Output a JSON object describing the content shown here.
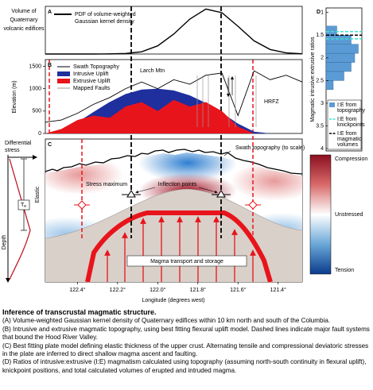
{
  "chart_data": [
    {
      "type": "line",
      "letter": "A",
      "ylabel_lines": [
        "Volume of",
        "Quaternary",
        "volcanic edifices"
      ],
      "legend_lines": [
        "PDF of volume-weighted",
        "Gaussian kernel density"
      ],
      "xlim": [
        122.56,
        121.28
      ],
      "ylim": [
        0,
        1.05
      ],
      "x": [
        122.56,
        122.48,
        122.4,
        122.32,
        122.24,
        122.16,
        122.08,
        122.0,
        121.92,
        121.84,
        121.76,
        121.68,
        121.6,
        121.52,
        121.44,
        121.36,
        121.28
      ],
      "values": [
        0,
        0,
        0,
        0.0002,
        0.002,
        0.011,
        0.05,
        0.18,
        0.44,
        0.77,
        0.99,
        0.91,
        0.61,
        0.29,
        0.1,
        0.025,
        0.005
      ],
      "color": "#000000"
    },
    {
      "type": "area",
      "letter": "B",
      "ylabel": "Elevation (m)",
      "xlim": [
        122.56,
        121.28
      ],
      "ylim": [
        0,
        1650
      ],
      "yticks": [
        0,
        500,
        1000,
        1500
      ],
      "x": [
        122.56,
        122.48,
        122.4,
        122.32,
        122.24,
        122.16,
        122.08,
        122.0,
        121.92,
        121.84,
        121.76,
        121.68,
        121.6,
        121.52,
        121.44,
        121.36,
        121.28
      ],
      "series": [
        {
          "name": "Swath Topography",
          "color": "#000000",
          "values": [
            250,
            300,
            450,
            650,
            800,
            1000,
            1150,
            1000,
            1200,
            1100,
            1300,
            1350,
            400,
            1400,
            1200,
            1300,
            1150
          ]
        },
        {
          "name": "Intrusive Uplift",
          "color": "#1f2f9e",
          "values": [
            0,
            80,
            250,
            480,
            700,
            880,
            980,
            1000,
            960,
            850,
            680,
            460,
            220,
            40,
            0,
            0,
            0
          ]
        },
        {
          "name": "Extrusive Uplift",
          "color": "#e8141b",
          "values": [
            0,
            100,
            300,
            400,
            350,
            600,
            700,
            500,
            750,
            600,
            700,
            500,
            150,
            0,
            0,
            0,
            0
          ]
        }
      ],
      "faults_label": "Mapped Faults",
      "annotations": [
        "Larch Mtn",
        "HRFZ"
      ]
    },
    {
      "type": "diagram",
      "letter": "C",
      "xlim": [
        122.56,
        121.28
      ],
      "xticks": [
        {
          "value": 122.4,
          "label": "122.4°"
        },
        {
          "value": 122.2,
          "label": "122.2°"
        },
        {
          "value": 122.0,
          "label": "122.0°"
        },
        {
          "value": 121.8,
          "label": "121.8°"
        },
        {
          "value": 121.6,
          "label": "121.6°"
        },
        {
          "value": 121.4,
          "label": "121.4°"
        }
      ],
      "xlabel": "Longitude (degrees west)",
      "topo_label": "Swath topography (to scale)",
      "stress_label": "Stress maximum",
      "inflection_label": "Inflection points",
      "magma_label": "Magma transport and storage",
      "diff_stress_lines": [
        "Differential",
        "stress"
      ],
      "te_symbol": "T",
      "te_subscript": "e",
      "elastic_label": "Elastic",
      "depth_label": "Depth",
      "colorbar": [
        "Compression",
        "Unstressed",
        "Tension"
      ]
    },
    {
      "type": "histogram",
      "letter": "D",
      "orientation": "horizontal",
      "ylabel": "Magmatic intrusive:extrusive ratios",
      "ylim": [
        0.9,
        4.05
      ],
      "yticks": [
        1,
        1.5,
        2,
        2.5,
        3,
        3.5,
        4
      ],
      "xlim": [
        0,
        10
      ],
      "bins": [
        1.3,
        1.5,
        1.7,
        1.9,
        2.1,
        2.3,
        2.5,
        2.7
      ],
      "values": [
        3,
        7,
        9,
        8,
        7,
        5,
        2
      ],
      "color": "#5b9bd5",
      "knickpoints": [
        1.42,
        1.58
      ],
      "knick_color": "#40e0d0",
      "volumes": [
        1.5
      ],
      "volume_color": "#000000",
      "legend": [
        [
          "I:E from",
          "topography"
        ],
        [
          "I:E from",
          "knickpoints"
        ],
        [
          "I:E from",
          "magmatic",
          "volumes"
        ]
      ]
    }
  ],
  "caption": {
    "title": "Inference of transcrustal magmatic structure.",
    "paragraphs": [
      "(A) Volume-weighted Gaussian kernel density of Quaternary edifices within 10 km north and south of the Columbia.",
      "(B) Intrusive and extrusive magmatic topography, using best fitting flexural uplift model. Dashed lines indicate major fault systems that bound the Hood River Valley.",
      "(C) Best fitting plate model defining elastic thickness of the upper crust. Alternating tensile and compressional deviatoric stresses in the plate are inferred to direct shallow magma ascent and faulting.",
      "(D) Ratios of intrusive:extrusive (I:E) magmatism calculated using topography (assuming north-south continuity in flexural uplift), knickpoint positions, and total calculated volumes of erupted and intruded magma."
    ]
  }
}
